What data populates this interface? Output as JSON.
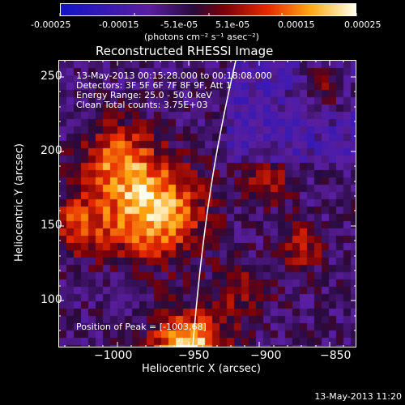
{
  "colorbar": {
    "tick_labels": [
      "-0.00025",
      "-0.00015",
      "-5.1e-05",
      "5.1e-05",
      "0.00015",
      "0.00025"
    ],
    "units": "(photons cm⁻² s⁻¹ asec⁻²)"
  },
  "title": "Reconstructed RHESSI Image",
  "annotations": {
    "time_range": "13-May-2013 00:15:28.000 to 00:18:08.000",
    "detectors": "Detectors: 3F 5F 6F 7F 8F 9F, Att 1",
    "energy": "Energy Range: 25.0 - 50.0 keV",
    "clean": "Clean     Total counts: 3.75E+03",
    "peak": "Position of Peak = [-1003,68]"
  },
  "axes": {
    "xlabel": "Heliocentric X (arcsec)",
    "ylabel": "Heliocentric Y (arcsec)",
    "x_ticks": [
      "−1000",
      "−950",
      "−900",
      "−850"
    ],
    "y_ticks": [
      "250",
      "200",
      "150",
      "100"
    ]
  },
  "timestamp": "13-May-2013 11:20",
  "colors": {
    "low": "#1414c8",
    "mid": "#6b1fa8",
    "high": "#ff3d00",
    "peak": "#ffff96"
  }
}
